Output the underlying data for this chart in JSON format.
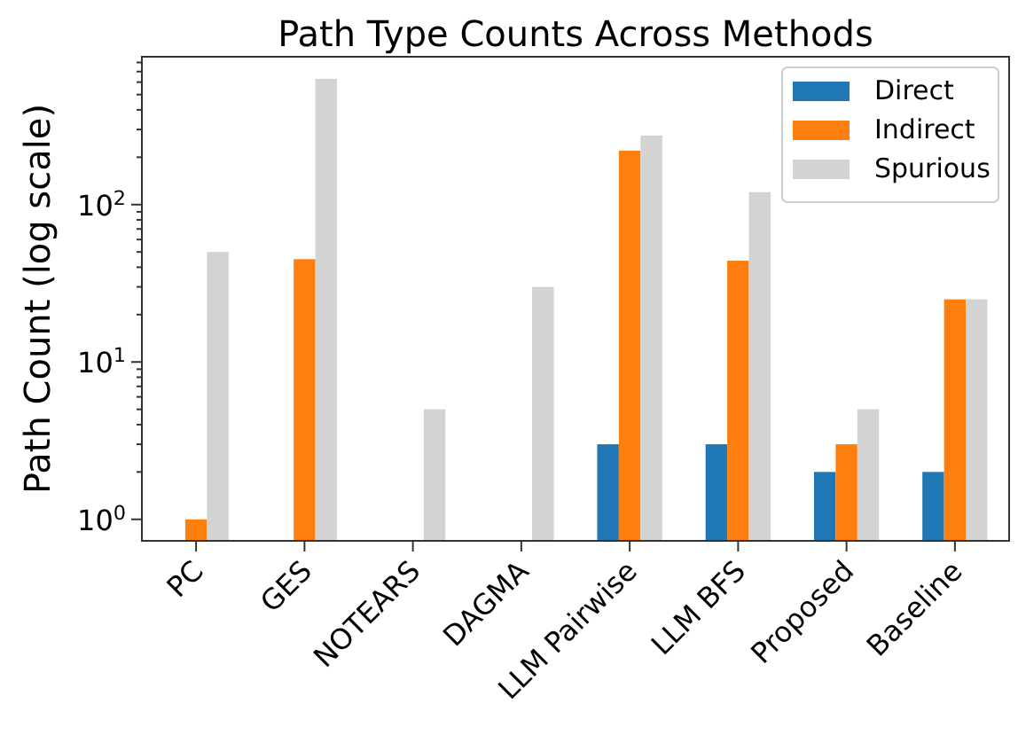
{
  "chart_data": {
    "type": "bar",
    "title": "Path Type Counts Across Methods",
    "ylabel": "Path Count (log scale)",
    "categories": [
      "PC",
      "GES",
      "NOTEARS",
      "DAGMA",
      "LLM Pairwise",
      "LLM BFS",
      "Proposed",
      "Baseline"
    ],
    "series": [
      {
        "name": "Direct",
        "color": "#1f77b4",
        "values": [
          null,
          null,
          null,
          null,
          3,
          3,
          2,
          2
        ]
      },
      {
        "name": "Indirect",
        "color": "#ff7f0e",
        "values": [
          1,
          45,
          null,
          null,
          220,
          44,
          3,
          25
        ]
      },
      {
        "name": "Spurious",
        "color": "#d3d3d3",
        "values": [
          50,
          630,
          5,
          30,
          275,
          120,
          5,
          25
        ]
      }
    ],
    "log": "y",
    "ylim": [
      0.73,
      870
    ],
    "yticks": [
      {
        "value": 1,
        "label": "10$^{0}$"
      },
      {
        "value": 2,
        "label": null
      },
      {
        "value": 3,
        "label": null
      },
      {
        "value": 4,
        "label": null
      },
      {
        "value": 5,
        "label": null
      },
      {
        "value": 6,
        "label": null
      },
      {
        "value": 7,
        "label": null
      },
      {
        "value": 8,
        "label": null
      },
      {
        "value": 9,
        "label": null
      },
      {
        "value": 10,
        "label": "10$^{1}$"
      },
      {
        "value": 20,
        "label": null
      },
      {
        "value": 30,
        "label": null
      },
      {
        "value": 40,
        "label": null
      },
      {
        "value": 50,
        "label": null
      },
      {
        "value": 60,
        "label": null
      },
      {
        "value": 70,
        "label": null
      },
      {
        "value": 80,
        "label": null
      },
      {
        "value": 90,
        "label": null
      },
      {
        "value": 100,
        "label": "10$^{2}$"
      },
      {
        "value": 200,
        "label": null
      },
      {
        "value": 300,
        "label": null
      },
      {
        "value": 400,
        "label": null
      },
      {
        "value": 500,
        "label": null
      },
      {
        "value": 600,
        "label": null
      },
      {
        "value": 700,
        "label": null
      },
      {
        "value": 800,
        "label": null
      }
    ],
    "grid": false,
    "legend": "top right"
  }
}
